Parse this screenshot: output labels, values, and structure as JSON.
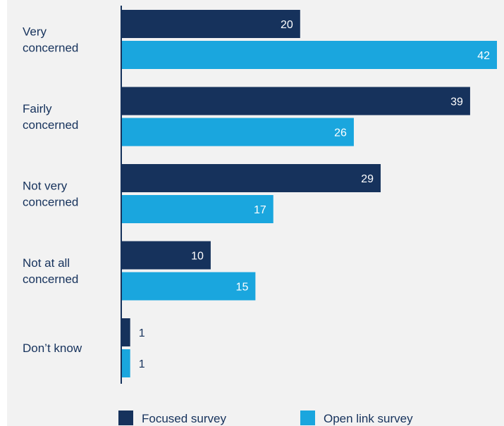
{
  "chart_data": {
    "type": "bar",
    "orientation": "horizontal",
    "categories": [
      [
        "Very",
        "concerned"
      ],
      [
        "Fairly",
        "concerned"
      ],
      [
        "Not very",
        "concerned"
      ],
      [
        "Not at all",
        "concerned"
      ],
      [
        "Don’t know"
      ]
    ],
    "series": [
      {
        "name": "Focused survey",
        "color": "#16325c",
        "values": [
          20,
          39,
          29,
          10,
          1
        ]
      },
      {
        "name": "Open link survey",
        "color": "#1aa6de",
        "values": [
          42,
          26,
          17,
          15,
          1
        ]
      }
    ],
    "xlim": [
      0,
      42
    ],
    "grid": false,
    "legend_position": "bottom",
    "value_labels": "inside-end-white-else-outside-dark",
    "label_color": "#16325c",
    "axis_color": "#16325c",
    "background_color": "#f2f2f2"
  }
}
